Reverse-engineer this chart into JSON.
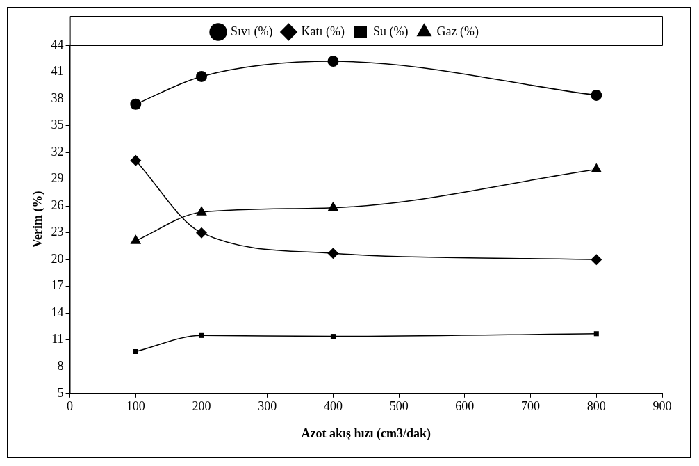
{
  "chart_data": {
    "type": "line",
    "xlabel": "Azot akış hızı (cm3/dak)",
    "ylabel": "Verim (%)",
    "x": [
      100,
      200,
      400,
      800
    ],
    "series": [
      {
        "name": "Sıvı (%)",
        "color": "#000000",
        "marker": "circle",
        "values": [
          37.4,
          40.5,
          42.2,
          38.4
        ]
      },
      {
        "name": "Katı (%)",
        "color": "#000000",
        "marker": "diamond",
        "values": [
          31.1,
          23.0,
          20.7,
          20.0
        ]
      },
      {
        "name": "Su (%)",
        "color": "#000000",
        "marker": "square",
        "values": [
          9.7,
          11.5,
          11.4,
          11.7
        ]
      },
      {
        "name": "Gaz (%)",
        "color": "#000000",
        "marker": "triangle",
        "values": [
          22.1,
          25.3,
          25.8,
          30.1
        ]
      }
    ],
    "xlim": [
      0,
      900
    ],
    "xticks": [
      0,
      100,
      200,
      300,
      400,
      500,
      600,
      700,
      800,
      900
    ],
    "ylim": [
      5,
      44
    ],
    "yticks": [
      5,
      8,
      11,
      14,
      17,
      20,
      23,
      26,
      29,
      32,
      35,
      38,
      41,
      44
    ],
    "grid": false,
    "legend": "top"
  }
}
